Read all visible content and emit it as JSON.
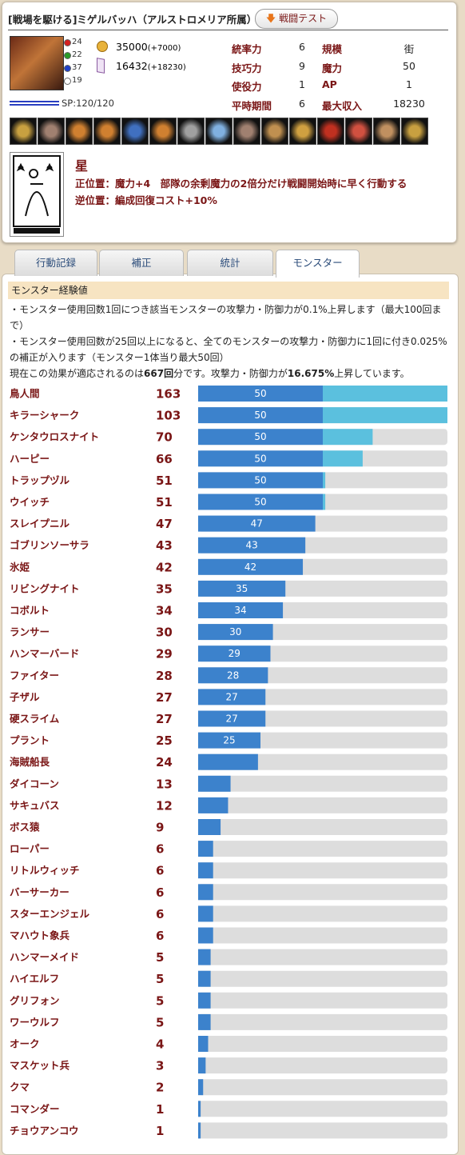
{
  "header": {
    "title": "[戦場を駆ける]ミゲルバッハ（アルストロメリア所属）",
    "button": "戦闘テスト"
  },
  "character": {
    "attributes": [
      24,
      22,
      37,
      19
    ],
    "gold": {
      "value": 35000,
      "bonus": "(+7000)"
    },
    "crystal": {
      "value": 16432,
      "bonus": "(+18230)"
    },
    "sp": "SP:120/120",
    "stats": [
      [
        "統率力",
        6,
        "規模",
        "街"
      ],
      [
        "技巧力",
        9,
        "魔力",
        50
      ],
      [
        "使役力",
        1,
        "AP",
        1
      ],
      [
        "平時期間",
        6,
        "最大収入",
        18230
      ]
    ]
  },
  "tarot": {
    "name": "星",
    "upright": "正位置：魔力+4　部隊の余剰魔力の2倍分だけ戦闘開始時に早く行動する",
    "reversed": "逆位置：編成回復コスト+10%"
  },
  "tabs": [
    "行動記録",
    "補正",
    "統計",
    "モンスター"
  ],
  "active_tab": 3,
  "monster_section": {
    "title": "モンスター経験値",
    "notes": [
      "・モンスター使用回数1回につき該当モンスターの攻撃力・防御力が0.1%上昇します（最大100回まで）",
      "・モンスター使用回数が25回以上になると、全てのモンスターの攻撃力・防御力に1回に付き0.025%の補正が入ります（モンスター1体当り最大50回）"
    ],
    "summary": [
      "現在この効果が適応されるのは",
      "667回",
      "分です。攻撃力・防御力が",
      "16.675%",
      "上昇しています。"
    ],
    "xlim": [
      0,
      100
    ],
    "rows": [
      {
        "name": "鳥人間",
        "count": 163,
        "values": [
          50,
          50
        ],
        "value_label": "50"
      },
      {
        "name": "キラーシャーク",
        "count": 103,
        "values": [
          50,
          50
        ],
        "value_label": "50"
      },
      {
        "name": "ケンタウロスナイト",
        "count": 70,
        "values": [
          50,
          20
        ],
        "value_label": "50"
      },
      {
        "name": "ハーピー",
        "count": 66,
        "values": [
          50,
          16
        ],
        "value_label": "50"
      },
      {
        "name": "トラップヅル",
        "count": 51,
        "values": [
          50,
          1
        ],
        "value_label": "50"
      },
      {
        "name": "ウイッチ",
        "count": 51,
        "values": [
          50,
          1
        ],
        "value_label": "50"
      },
      {
        "name": "スレイプニル",
        "count": 47,
        "values": [
          47
        ],
        "value_label": "47"
      },
      {
        "name": "ゴブリンソーサラ",
        "count": 43,
        "values": [
          43
        ],
        "value_label": "43"
      },
      {
        "name": "氷姫",
        "count": 42,
        "values": [
          42
        ],
        "value_label": "42"
      },
      {
        "name": "リビングナイト",
        "count": 35,
        "values": [
          35
        ],
        "value_label": "35"
      },
      {
        "name": "コボルト",
        "count": 34,
        "values": [
          34
        ],
        "value_label": "34"
      },
      {
        "name": "ランサー",
        "count": 30,
        "values": [
          30
        ],
        "value_label": "30"
      },
      {
        "name": "ハンマーバード",
        "count": 29,
        "values": [
          29
        ],
        "value_label": "29"
      },
      {
        "name": "ファイター",
        "count": 28,
        "values": [
          28
        ],
        "value_label": "28"
      },
      {
        "name": "子ザル",
        "count": 27,
        "values": [
          27
        ],
        "value_label": "27"
      },
      {
        "name": "硬スライム",
        "count": 27,
        "values": [
          27
        ],
        "value_label": "27"
      },
      {
        "name": "プラント",
        "count": 25,
        "values": [
          25
        ],
        "value_label": "25"
      },
      {
        "name": "海賊船長",
        "count": 24,
        "values": [
          24
        ]
      },
      {
        "name": "ダイコーン",
        "count": 13,
        "values": [
          13
        ]
      },
      {
        "name": "サキュバス",
        "count": 12,
        "values": [
          12
        ]
      },
      {
        "name": "ボス猿",
        "count": 9,
        "values": [
          9
        ]
      },
      {
        "name": "ローパー",
        "count": 6,
        "values": [
          6
        ]
      },
      {
        "name": "リトルウィッチ",
        "count": 6,
        "values": [
          6
        ]
      },
      {
        "name": "バーサーカー",
        "count": 6,
        "values": [
          6
        ]
      },
      {
        "name": "スターエンジェル",
        "count": 6,
        "values": [
          6
        ]
      },
      {
        "name": "マハウト象兵",
        "count": 6,
        "values": [
          6
        ]
      },
      {
        "name": "ハンマーメイド",
        "count": 5,
        "values": [
          5
        ]
      },
      {
        "name": "ハイエルフ",
        "count": 5,
        "values": [
          5
        ]
      },
      {
        "name": "グリフォン",
        "count": 5,
        "values": [
          5
        ]
      },
      {
        "name": "ワーウルフ",
        "count": 5,
        "values": [
          5
        ]
      },
      {
        "name": "オーク",
        "count": 4,
        "values": [
          4
        ]
      },
      {
        "name": "マスケット兵",
        "count": 3,
        "values": [
          3
        ]
      },
      {
        "name": "クマ",
        "count": 2,
        "values": [
          2
        ]
      },
      {
        "name": "コマンダー",
        "count": 1,
        "values": [
          1
        ]
      },
      {
        "name": "チョウアンコウ",
        "count": 1,
        "values": [
          1
        ]
      }
    ]
  }
}
